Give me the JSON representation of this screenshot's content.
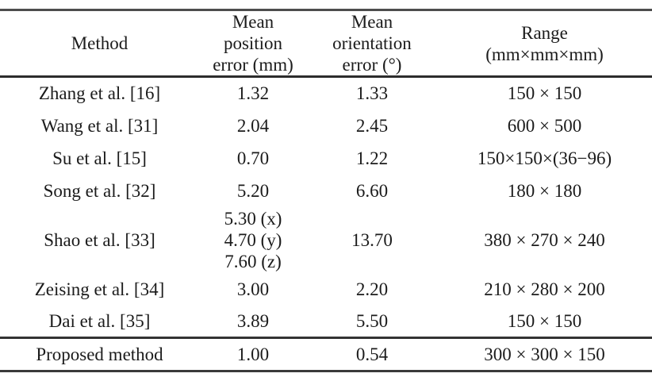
{
  "table": {
    "headers": [
      "Method",
      "Mean\nposition\nerror (mm)",
      "Mean\norientation\nerror (°)",
      "Range\n(mm×mm×mm)"
    ],
    "rows": [
      {
        "method": "Zhang et al. [16]",
        "position_error_mm": "1.32",
        "orientation_error_deg": "1.33",
        "range": "150 × 150"
      },
      {
        "method": "Wang et al. [31]",
        "position_error_mm": "2.04",
        "orientation_error_deg": "2.45",
        "range": "600 × 500"
      },
      {
        "method": "Su et al. [15]",
        "position_error_mm": "0.70",
        "orientation_error_deg": "1.22",
        "range": "150×150×(36−96)"
      },
      {
        "method": "Song et al. [32]",
        "position_error_mm": "5.20",
        "orientation_error_deg": "6.60",
        "range": "180 × 180"
      },
      {
        "method": "Shao et al. [33]",
        "position_error_mm": "5.30 (x)\n4.70 (y)\n7.60 (z)",
        "orientation_error_deg": "13.70",
        "range": "380 × 270 × 240"
      },
      {
        "method": "Zeising et al. [34]",
        "position_error_mm": "3.00",
        "orientation_error_deg": "2.20",
        "range": "210 × 280 × 200"
      },
      {
        "method": "Dai et al. [35]",
        "position_error_mm": "3.89",
        "orientation_error_deg": "5.50",
        "range": "150 × 150"
      }
    ],
    "footer": {
      "method": "Proposed method",
      "position_error_mm": "1.00",
      "orientation_error_deg": "0.54",
      "range": "300 × 300 × 150"
    }
  },
  "colors": {
    "background": "#ffffff",
    "text": "#1b1b1b",
    "rule": "#3a3a3a"
  }
}
